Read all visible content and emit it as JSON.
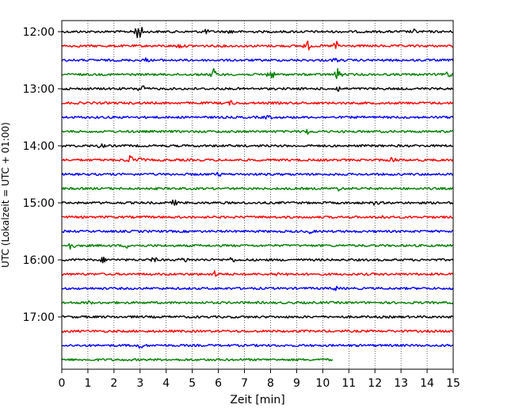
{
  "chart_data": {
    "type": "line",
    "title": "",
    "xlabel": "Zeit  [min]",
    "ylabel": "UTC (Lokalzeit = UTC + 01:00)",
    "xlim": [
      0,
      15
    ],
    "x_ticks": [
      "0",
      "1",
      "2",
      "3",
      "4",
      "5",
      "6",
      "7",
      "8",
      "9",
      "10",
      "11",
      "12",
      "13",
      "14",
      "15"
    ],
    "y_ticks": [
      "12:00",
      "13:00",
      "14:00",
      "15:00",
      "16:00",
      "17:00"
    ],
    "grid": "vertical-dotted",
    "legend": "none",
    "row_interval_minutes": 15,
    "series_colors": [
      "#000000",
      "#ff0000",
      "#0000ff",
      "#008000"
    ],
    "series": [
      {
        "start": "12:00",
        "end_minute": 15,
        "color": "#000000",
        "events": [
          {
            "t": 2.85,
            "amp": 9
          },
          {
            "t": 3.0,
            "amp": 7
          },
          {
            "t": 5.5,
            "amp": 2.5
          },
          {
            "t": 6.5,
            "amp": 2
          },
          {
            "t": 13.5,
            "amp": 2
          }
        ]
      },
      {
        "start": "12:15",
        "end_minute": 15,
        "color": "#ff0000",
        "events": [
          {
            "t": 9.4,
            "amp": 6
          },
          {
            "t": 10.5,
            "amp": 6
          },
          {
            "t": 4.5,
            "amp": 2
          }
        ]
      },
      {
        "start": "12:30",
        "end_minute": 15,
        "color": "#0000ff",
        "events": [
          {
            "t": 3.2,
            "amp": 2
          },
          {
            "t": 10.5,
            "amp": 2
          }
        ]
      },
      {
        "start": "12:45",
        "end_minute": 15,
        "color": "#008000",
        "events": [
          {
            "t": 5.8,
            "amp": 7
          },
          {
            "t": 8.0,
            "amp": 7
          },
          {
            "t": 10.6,
            "amp": 8
          },
          {
            "t": 14.8,
            "amp": 4
          }
        ]
      },
      {
        "start": "13:00",
        "end_minute": 15,
        "color": "#000000",
        "events": [
          {
            "t": 3.05,
            "amp": 6
          },
          {
            "t": 10.6,
            "amp": 3
          }
        ]
      },
      {
        "start": "13:15",
        "end_minute": 15,
        "color": "#ff0000",
        "events": [
          {
            "t": 6.5,
            "amp": 2
          }
        ]
      },
      {
        "start": "13:30",
        "end_minute": 15,
        "color": "#0000ff",
        "events": [
          {
            "t": 7.9,
            "amp": 2.5
          }
        ]
      },
      {
        "start": "13:45",
        "end_minute": 15,
        "color": "#008000",
        "events": [
          {
            "t": 9.4,
            "amp": 3
          }
        ]
      },
      {
        "start": "14:00",
        "end_minute": 15,
        "color": "#000000",
        "events": [
          {
            "t": 1.5,
            "amp": 2
          }
        ]
      },
      {
        "start": "14:15",
        "end_minute": 15,
        "color": "#ff0000",
        "events": [
          {
            "t": 2.6,
            "amp": 6
          },
          {
            "t": 3.0,
            "amp": 3
          },
          {
            "t": 12.7,
            "amp": 4
          }
        ]
      },
      {
        "start": "14:30",
        "end_minute": 15,
        "color": "#0000ff",
        "events": [
          {
            "t": 6.0,
            "amp": 2
          }
        ]
      },
      {
        "start": "14:45",
        "end_minute": 15,
        "color": "#008000",
        "events": [
          {
            "t": 10.6,
            "amp": 2
          }
        ]
      },
      {
        "start": "15:00",
        "end_minute": 15,
        "color": "#000000",
        "events": [
          {
            "t": 4.3,
            "amp": 3
          },
          {
            "t": 12.0,
            "amp": 2
          }
        ]
      },
      {
        "start": "15:15",
        "end_minute": 15,
        "color": "#ff0000",
        "events": [
          {
            "t": 12.3,
            "amp": 2
          }
        ]
      },
      {
        "start": "15:30",
        "end_minute": 15,
        "color": "#0000ff",
        "events": [
          {
            "t": 9.5,
            "amp": 2
          }
        ]
      },
      {
        "start": "15:45",
        "end_minute": 15,
        "color": "#008000",
        "events": [
          {
            "t": 0.35,
            "amp": 5
          },
          {
            "t": 2.5,
            "amp": 2
          }
        ]
      },
      {
        "start": "16:00",
        "end_minute": 15,
        "color": "#000000",
        "events": [
          {
            "t": 1.6,
            "amp": 3
          },
          {
            "t": 3.5,
            "amp": 3
          },
          {
            "t": 4.7,
            "amp": 3
          },
          {
            "t": 6.5,
            "amp": 3
          }
        ]
      },
      {
        "start": "16:15",
        "end_minute": 15,
        "color": "#ff0000",
        "events": [
          {
            "t": 5.9,
            "amp": 4
          },
          {
            "t": 8.2,
            "amp": 2
          },
          {
            "t": 8.7,
            "amp": 2
          }
        ]
      },
      {
        "start": "16:30",
        "end_minute": 15,
        "color": "#0000ff",
        "events": [
          {
            "t": 10.5,
            "amp": 2
          }
        ]
      },
      {
        "start": "16:45",
        "end_minute": 15,
        "color": "#008000",
        "events": [
          {
            "t": 1.0,
            "amp": 2
          }
        ]
      },
      {
        "start": "17:00",
        "end_minute": 15,
        "color": "#000000",
        "events": []
      },
      {
        "start": "17:15",
        "end_minute": 15,
        "color": "#ff0000",
        "events": []
      },
      {
        "start": "17:30",
        "end_minute": 15,
        "color": "#0000ff",
        "events": [
          {
            "t": 3.0,
            "amp": 3
          }
        ]
      },
      {
        "start": "17:45",
        "end_minute": 10.4,
        "color": "#008000",
        "events": []
      }
    ]
  }
}
